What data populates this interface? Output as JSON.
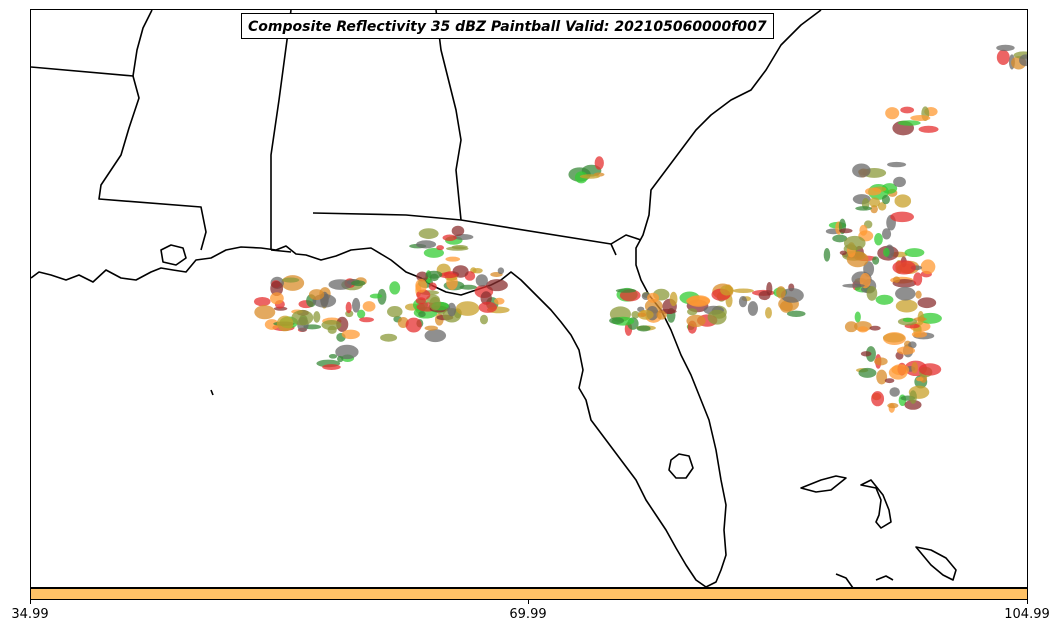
{
  "title": "Composite Reflectivity 35 dBZ Paintball Valid: 202105060000f007",
  "colorbar": {
    "color": "#ffc266",
    "ticks": [
      "34.99",
      "69.99",
      "104.99"
    ]
  },
  "colors": {
    "coastline": "#000000",
    "paintball": [
      "#e63030",
      "#d98c2a",
      "#c8a02a",
      "#8b9a3a",
      "#3a8a3a",
      "#6a6a6a",
      "#8b3030",
      "#33cc33",
      "#ff9933"
    ]
  }
}
